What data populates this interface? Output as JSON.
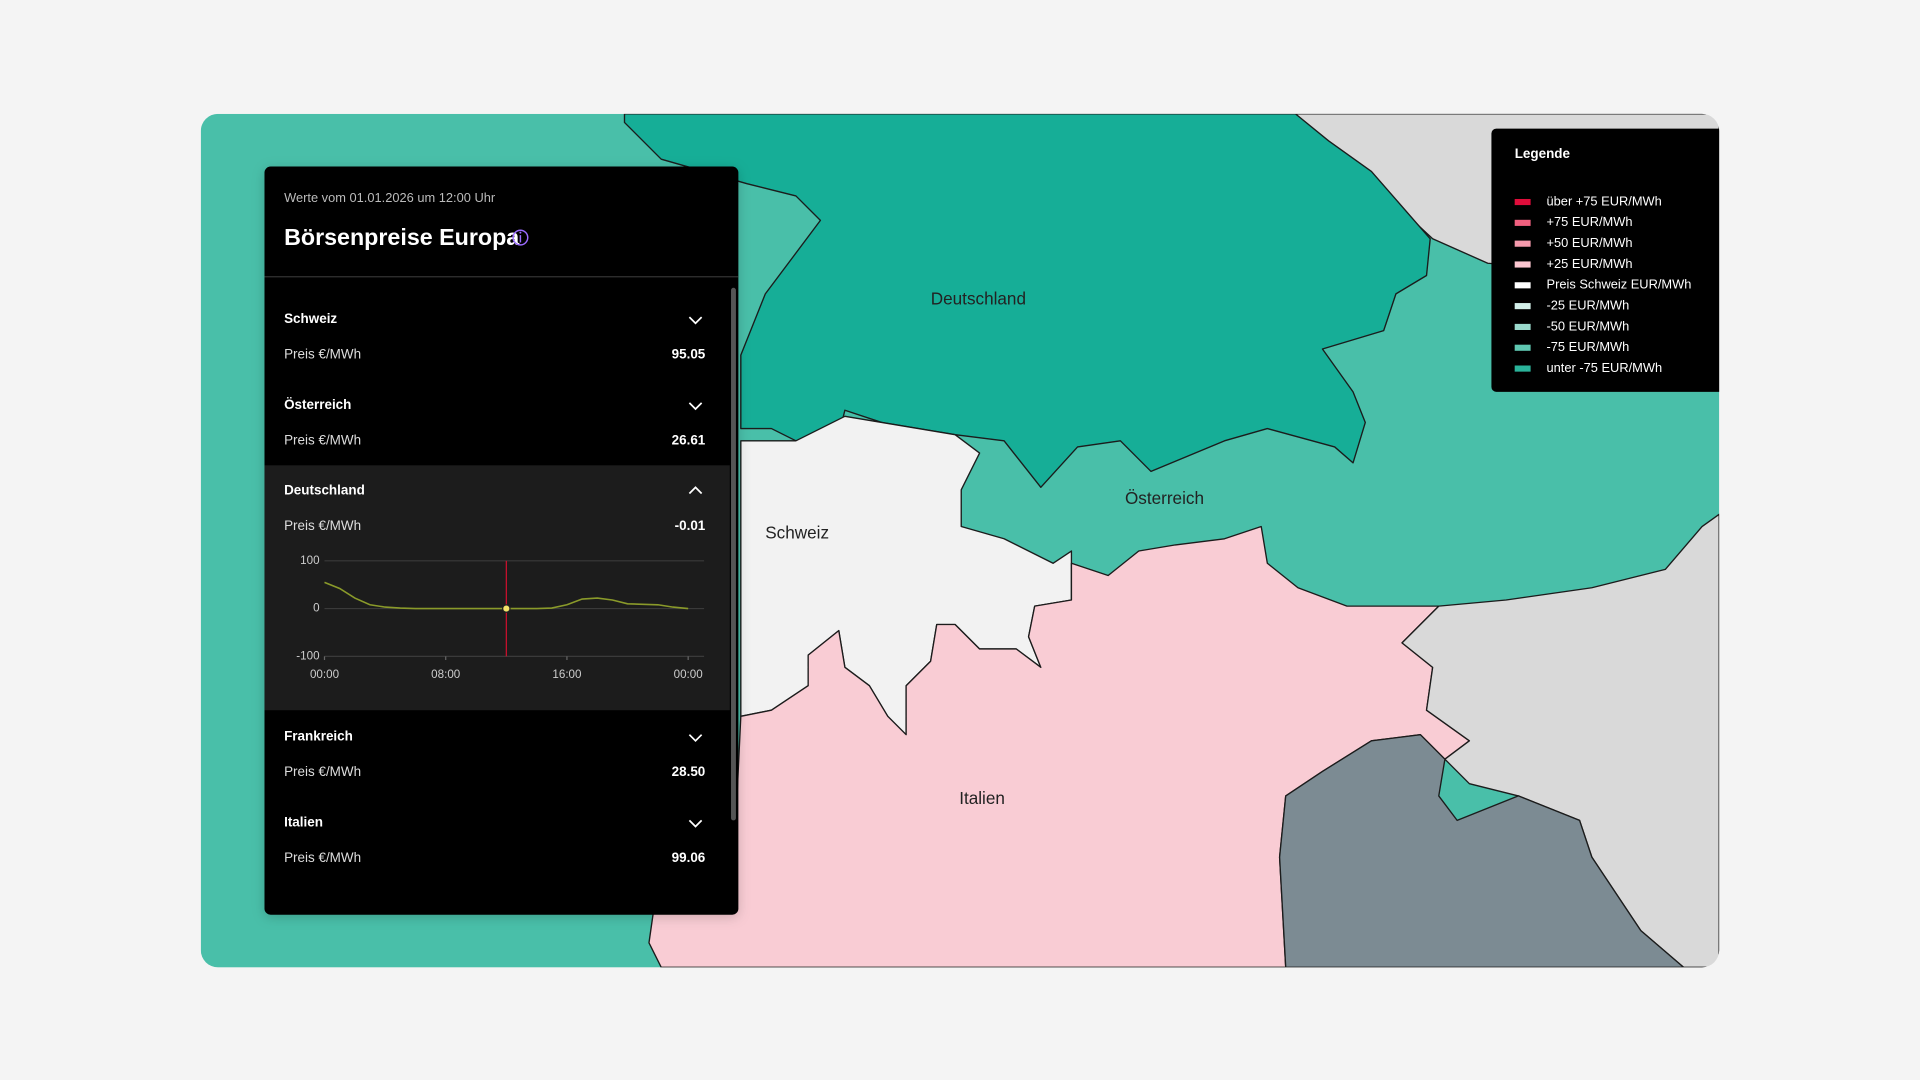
{
  "header": {
    "subtitle": "Werte vom 01.01.2026 um 12:00 Uhr",
    "title": "Börsenpreise Europa"
  },
  "countries": [
    {
      "name": "Schweiz",
      "price_label": "Preis €/MWh",
      "value": "95.05"
    },
    {
      "name": "Österreich",
      "price_label": "Preis €/MWh",
      "value": "26.61"
    },
    {
      "name": "Deutschland",
      "price_label": "Preis €/MWh",
      "value": "-0.01",
      "chart": {
        "type": "line",
        "color": "#8a9a2a",
        "x": [
          0,
          1,
          2,
          3,
          4,
          5,
          6,
          7,
          8,
          9,
          10,
          11,
          12,
          13,
          14,
          15,
          16,
          17,
          18,
          19,
          20,
          21,
          22,
          23,
          24
        ],
        "values": [
          55,
          42,
          22,
          8,
          3,
          1,
          0,
          0,
          0,
          0,
          0,
          0,
          -0.01,
          0,
          0,
          1,
          8,
          20,
          22,
          18,
          10,
          9,
          8,
          3,
          0
        ],
        "xlim": [
          0,
          24
        ],
        "ylim": [
          -100,
          100
        ],
        "yticks": [
          100,
          0,
          -100
        ],
        "xticks": [
          {
            "value": 0,
            "label": "00:00"
          },
          {
            "value": 8,
            "label": "08:00"
          },
          {
            "value": 16,
            "label": "16:00"
          },
          {
            "value": 24,
            "label": "00:00"
          }
        ],
        "grid": true
      }
    },
    {
      "name": "Frankreich",
      "price_label": "Preis €/MWh",
      "value": "28.50"
    },
    {
      "name": "Italien",
      "price_label": "Preis €/MWh",
      "value": "99.06"
    }
  ],
  "map": {
    "labels": [
      "Deutschland",
      "Schweiz",
      "Österreich",
      "Italien"
    ]
  },
  "legend": {
    "title": "Legende",
    "items": [
      {
        "label": "über +75 EUR/MWh",
        "color": "#e0103a"
      },
      {
        "label": "+75 EUR/MWh",
        "color": "#f0617f"
      },
      {
        "label": "+50 EUR/MWh",
        "color": "#f59aac"
      },
      {
        "label": "+25 EUR/MWh",
        "color": "#fbc6d0"
      },
      {
        "label": "Preis Schweiz EUR/MWh",
        "color": "#ffffff"
      },
      {
        "label": "-25 EUR/MWh",
        "color": "#d3efe9"
      },
      {
        "label": "-50 EUR/MWh",
        "color": "#9ad9cc"
      },
      {
        "label": "-75 EUR/MWh",
        "color": "#5ec7b1"
      },
      {
        "label": "unter -75 EUR/MWh",
        "color": "#2bb39a"
      }
    ]
  }
}
